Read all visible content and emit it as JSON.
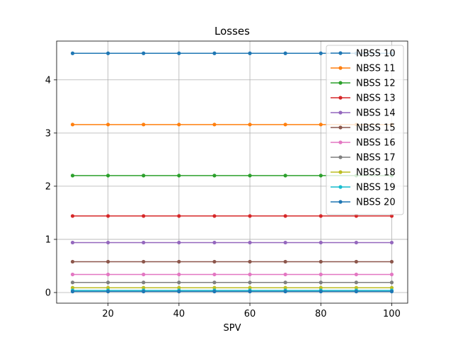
{
  "chart_data": {
    "type": "line",
    "title": "Losses",
    "xlabel": "SPV",
    "ylabel": "",
    "xlim": [
      5.5,
      104.5
    ],
    "ylim": [
      -0.2,
      4.73
    ],
    "xticks": [
      20,
      40,
      60,
      80,
      100
    ],
    "yticks": [
      0,
      1,
      2,
      3,
      4
    ],
    "grid": true,
    "legend_position": "top-right",
    "x": [
      10,
      20,
      30,
      40,
      50,
      60,
      70,
      80,
      90,
      100
    ],
    "series": [
      {
        "name": "NBSS 10",
        "color": "#1f77b4",
        "values": [
          4.5,
          4.5,
          4.5,
          4.5,
          4.5,
          4.5,
          4.5,
          4.5,
          4.5,
          4.5
        ]
      },
      {
        "name": "NBSS 11",
        "color": "#ff7f0e",
        "values": [
          3.16,
          3.16,
          3.16,
          3.16,
          3.16,
          3.16,
          3.16,
          3.16,
          3.16,
          3.16
        ]
      },
      {
        "name": "NBSS 12",
        "color": "#2ca02c",
        "values": [
          2.2,
          2.2,
          2.2,
          2.2,
          2.2,
          2.2,
          2.2,
          2.2,
          2.2,
          2.2
        ]
      },
      {
        "name": "NBSS 13",
        "color": "#d62728",
        "values": [
          1.44,
          1.44,
          1.44,
          1.44,
          1.44,
          1.44,
          1.44,
          1.44,
          1.44,
          1.44
        ]
      },
      {
        "name": "NBSS 14",
        "color": "#9467bd",
        "values": [
          0.94,
          0.94,
          0.94,
          0.94,
          0.94,
          0.94,
          0.94,
          0.94,
          0.94,
          0.94
        ]
      },
      {
        "name": "NBSS 15",
        "color": "#8c564b",
        "values": [
          0.58,
          0.58,
          0.58,
          0.58,
          0.58,
          0.58,
          0.58,
          0.58,
          0.58,
          0.58
        ]
      },
      {
        "name": "NBSS 16",
        "color": "#e377c2",
        "values": [
          0.34,
          0.34,
          0.34,
          0.34,
          0.34,
          0.34,
          0.34,
          0.34,
          0.34,
          0.34
        ]
      },
      {
        "name": "NBSS 17",
        "color": "#7f7f7f",
        "values": [
          0.19,
          0.19,
          0.19,
          0.19,
          0.19,
          0.19,
          0.19,
          0.19,
          0.19,
          0.19
        ]
      },
      {
        "name": "NBSS 18",
        "color": "#bcbd22",
        "values": [
          0.09,
          0.09,
          0.09,
          0.09,
          0.09,
          0.09,
          0.09,
          0.09,
          0.09,
          0.09
        ]
      },
      {
        "name": "NBSS 19",
        "color": "#17becf",
        "values": [
          0.04,
          0.04,
          0.04,
          0.04,
          0.04,
          0.04,
          0.04,
          0.04,
          0.04,
          0.04
        ]
      },
      {
        "name": "NBSS 20",
        "color": "#1f77b4",
        "values": [
          0.02,
          0.02,
          0.02,
          0.02,
          0.02,
          0.02,
          0.02,
          0.02,
          0.02,
          0.02
        ]
      }
    ]
  }
}
